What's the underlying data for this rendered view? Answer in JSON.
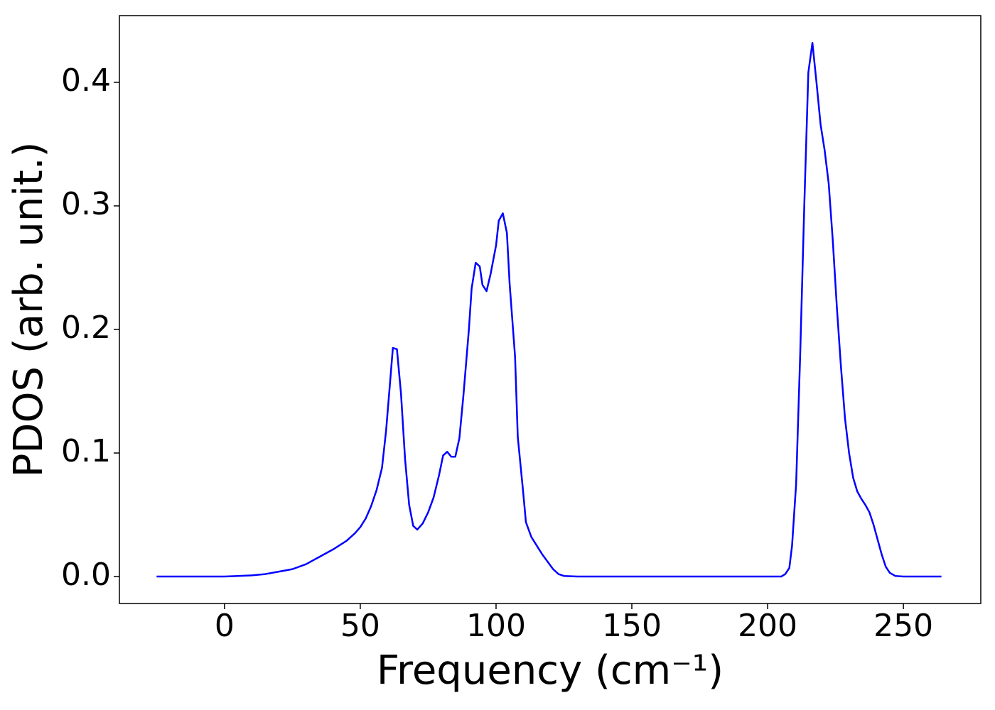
{
  "chart_data": {
    "type": "line",
    "xlabel": "Frequency (cm⁻¹)",
    "ylabel": "PDOS (arb. unit.)",
    "x": [
      -25,
      0,
      5,
      10,
      15,
      20,
      25,
      30,
      35,
      40,
      45,
      48,
      50,
      52,
      54,
      56,
      58,
      59.5,
      61,
      62,
      63.5,
      65,
      66.5,
      68,
      69.5,
      71,
      73,
      75,
      77,
      79,
      80.5,
      82,
      83.5,
      85,
      86.5,
      88,
      90,
      91,
      92.5,
      94,
      95,
      96.5,
      98,
      100,
      101,
      102.5,
      104,
      105,
      107,
      108,
      110,
      111,
      113,
      115,
      117,
      119,
      121,
      123,
      125,
      130,
      150,
      200,
      205,
      206.5,
      208,
      209,
      210.5,
      212,
      213.5,
      215,
      216.5,
      218,
      219.5,
      221,
      222.5,
      224,
      225.5,
      227,
      228.5,
      230,
      231.5,
      233,
      234.5,
      236,
      237.5,
      239,
      240.5,
      242,
      243.5,
      245,
      247,
      250,
      264
    ],
    "series": [
      {
        "color": "#0000ff",
        "values": [
          0,
          0,
          0.0005,
          0.001,
          0.002,
          0.004,
          0.006,
          0.01,
          0.016,
          0.022,
          0.029,
          0.035,
          0.04,
          0.047,
          0.057,
          0.07,
          0.088,
          0.118,
          0.158,
          0.185,
          0.184,
          0.148,
          0.095,
          0.058,
          0.041,
          0.038,
          0.043,
          0.052,
          0.064,
          0.082,
          0.098,
          0.101,
          0.097,
          0.097,
          0.112,
          0.147,
          0.2,
          0.233,
          0.254,
          0.251,
          0.236,
          0.231,
          0.245,
          0.268,
          0.288,
          0.294,
          0.278,
          0.237,
          0.178,
          0.113,
          0.068,
          0.044,
          0.032,
          0.025,
          0.018,
          0.012,
          0.006,
          0.002,
          0.0005,
          0,
          0,
          0,
          0,
          0.002,
          0.007,
          0.025,
          0.075,
          0.18,
          0.3,
          0.408,
          0.432,
          0.4,
          0.366,
          0.345,
          0.318,
          0.272,
          0.218,
          0.17,
          0.128,
          0.1,
          0.08,
          0.069,
          0.063,
          0.058,
          0.052,
          0.042,
          0.03,
          0.018,
          0.008,
          0.003,
          0.0005,
          0,
          0
        ]
      }
    ],
    "xlim": [
      -38.7,
      278.5
    ],
    "ylim": [
      -0.0218,
      0.454
    ],
    "xticks": [
      0,
      50,
      100,
      150,
      200,
      250
    ],
    "yticks": [
      {
        "value": 0,
        "label": "0.0"
      },
      0.1,
      0.2,
      0.3,
      0.4
    ]
  }
}
